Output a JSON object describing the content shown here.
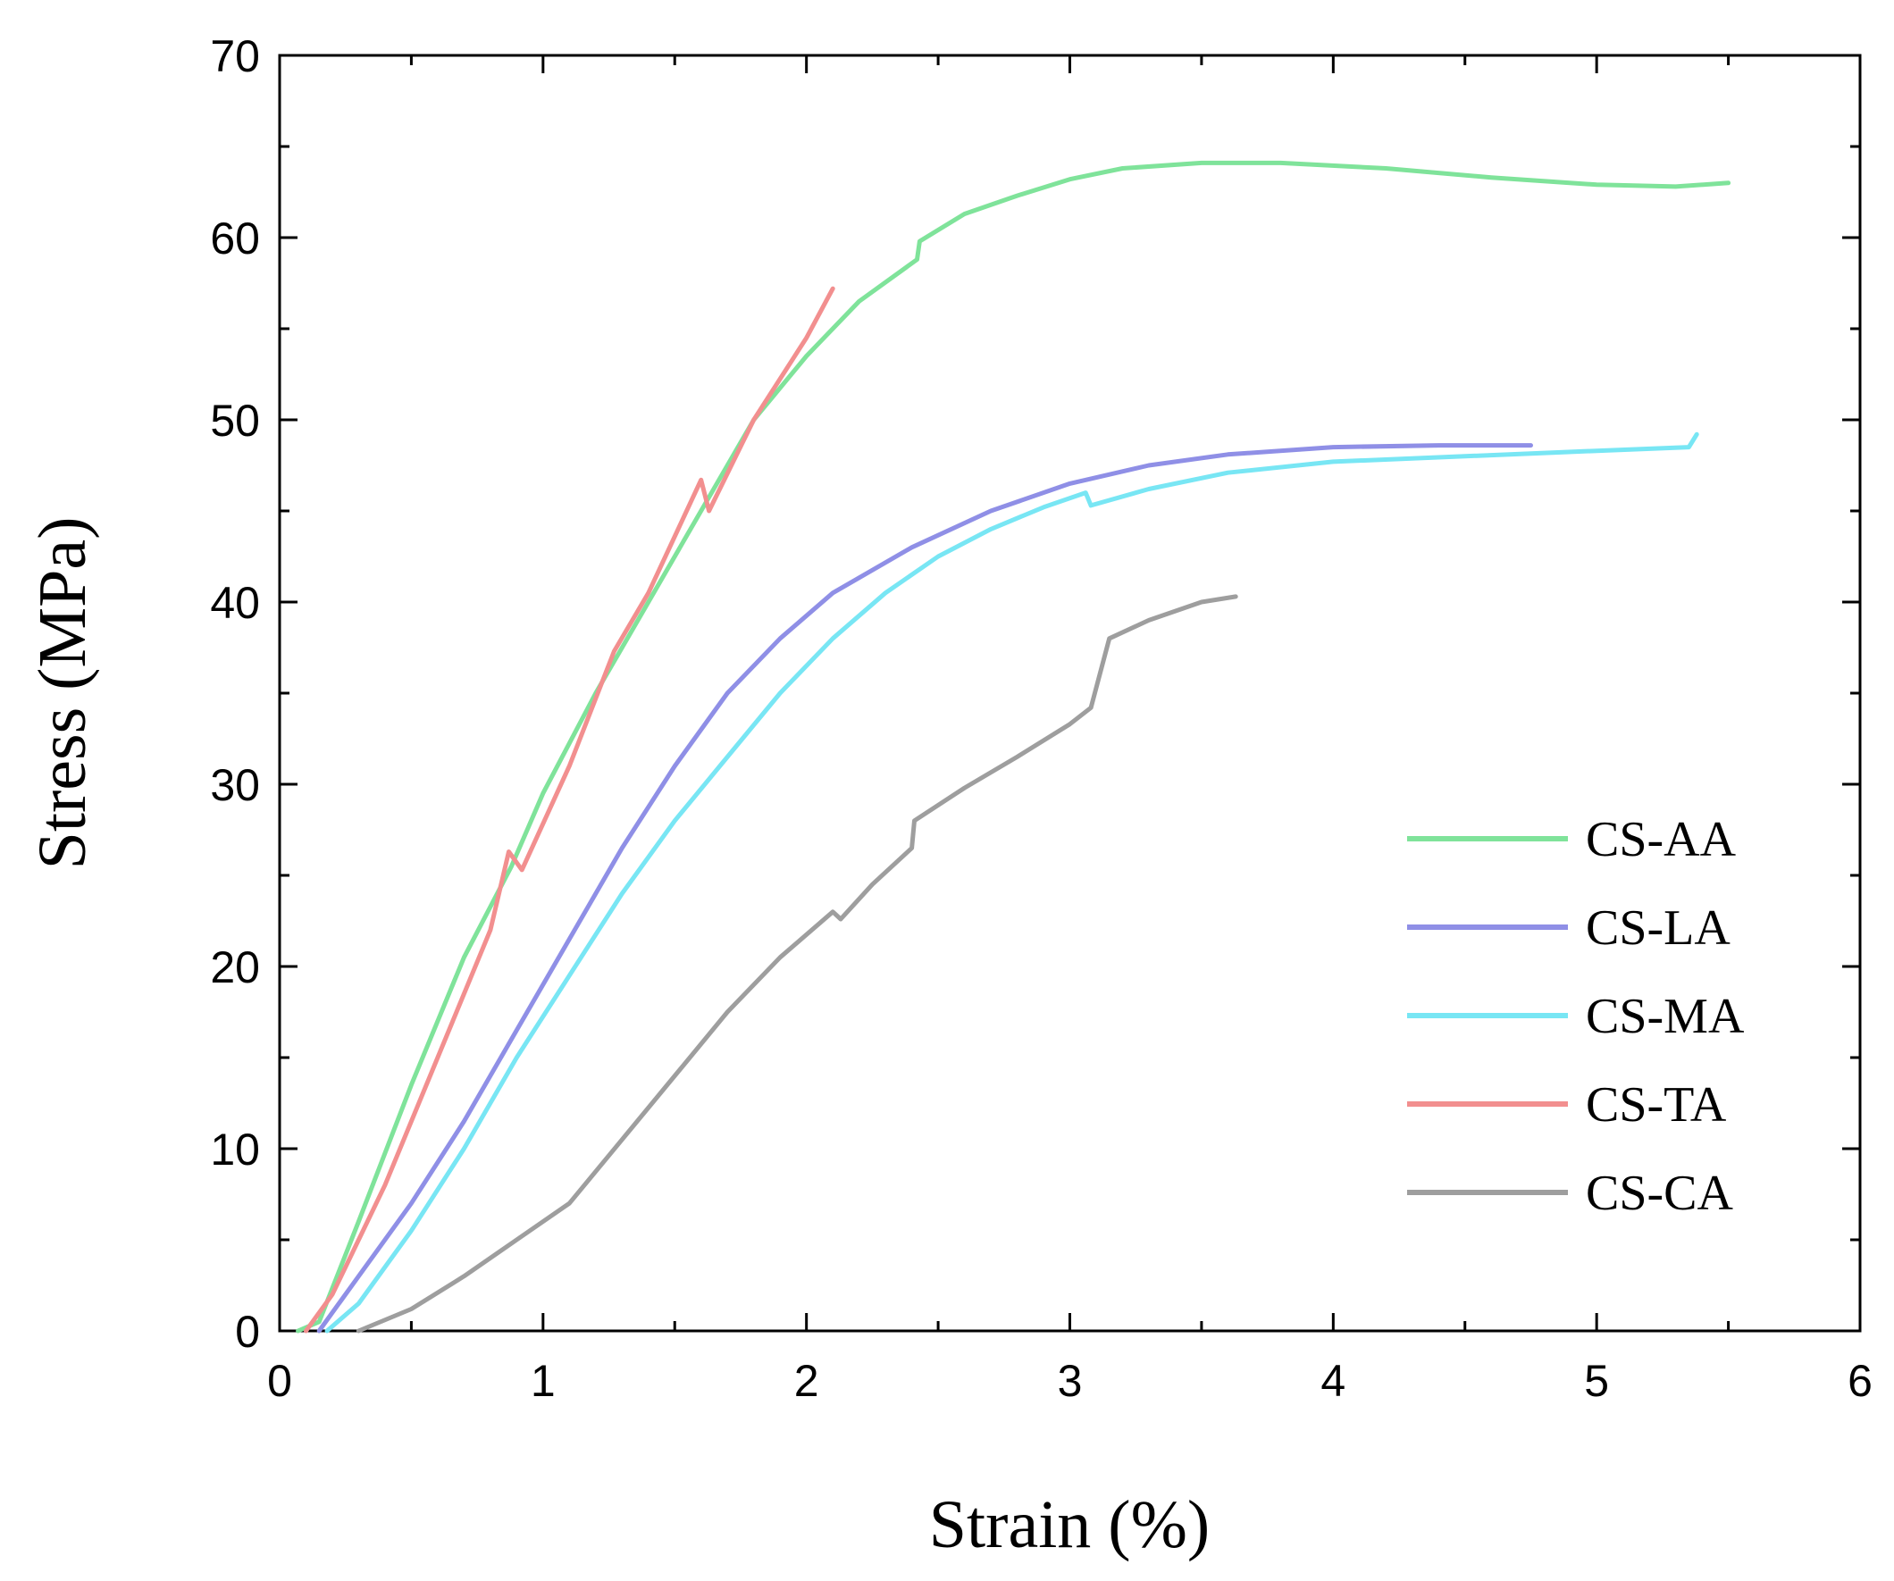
{
  "chart_data": {
    "type": "line",
    "title": "",
    "xlabel": "Strain (%)",
    "ylabel": "Stress (MPa)",
    "xlim": [
      0,
      6
    ],
    "ylim": [
      0,
      70
    ],
    "xticks": [
      0,
      1,
      2,
      3,
      4,
      5,
      6
    ],
    "xtick_labels": [
      "0",
      "1",
      "2",
      "3",
      "4",
      "5",
      "6"
    ],
    "yticks": [
      0,
      10,
      20,
      30,
      40,
      50,
      60,
      70
    ],
    "ytick_labels": [
      "0",
      "10",
      "20",
      "30",
      "40",
      "50",
      "60",
      "70"
    ],
    "grid": false,
    "legend_position": "right",
    "series": [
      {
        "name": "CS-AA",
        "color": "#7fe39a",
        "points": [
          [
            0.07,
            0
          ],
          [
            0.15,
            0.5
          ],
          [
            0.3,
            6
          ],
          [
            0.5,
            13.5
          ],
          [
            0.7,
            20.5
          ],
          [
            0.88,
            25.5
          ],
          [
            1.0,
            29.5
          ],
          [
            1.2,
            35
          ],
          [
            1.4,
            40
          ],
          [
            1.6,
            45
          ],
          [
            1.8,
            50
          ],
          [
            2.0,
            53.5
          ],
          [
            2.2,
            56.5
          ],
          [
            2.42,
            58.8
          ],
          [
            2.43,
            59.8
          ],
          [
            2.6,
            61.3
          ],
          [
            2.8,
            62.3
          ],
          [
            3.0,
            63.2
          ],
          [
            3.2,
            63.8
          ],
          [
            3.5,
            64.1
          ],
          [
            3.8,
            64.1
          ],
          [
            4.2,
            63.8
          ],
          [
            4.6,
            63.3
          ],
          [
            5.0,
            62.9
          ],
          [
            5.3,
            62.8
          ],
          [
            5.5,
            63
          ]
        ]
      },
      {
        "name": "CS-LA",
        "color": "#8f8fe6",
        "points": [
          [
            0.15,
            0
          ],
          [
            0.3,
            3
          ],
          [
            0.5,
            7
          ],
          [
            0.7,
            11.5
          ],
          [
            0.9,
            16.5
          ],
          [
            1.1,
            21.5
          ],
          [
            1.3,
            26.5
          ],
          [
            1.5,
            31
          ],
          [
            1.7,
            35
          ],
          [
            1.9,
            38
          ],
          [
            2.1,
            40.5
          ],
          [
            2.4,
            43
          ],
          [
            2.7,
            45
          ],
          [
            3.0,
            46.5
          ],
          [
            3.3,
            47.5
          ],
          [
            3.6,
            48.1
          ],
          [
            4.0,
            48.5
          ],
          [
            4.4,
            48.6
          ],
          [
            4.75,
            48.6
          ]
        ]
      },
      {
        "name": "CS-MA",
        "color": "#78e6f4",
        "points": [
          [
            0.18,
            0
          ],
          [
            0.3,
            1.5
          ],
          [
            0.5,
            5.5
          ],
          [
            0.7,
            10
          ],
          [
            0.9,
            15
          ],
          [
            1.1,
            19.5
          ],
          [
            1.3,
            24
          ],
          [
            1.5,
            28
          ],
          [
            1.7,
            31.5
          ],
          [
            1.9,
            35
          ],
          [
            2.1,
            38
          ],
          [
            2.3,
            40.5
          ],
          [
            2.5,
            42.5
          ],
          [
            2.7,
            44
          ],
          [
            2.9,
            45.2
          ],
          [
            3.06,
            46
          ],
          [
            3.08,
            45.3
          ],
          [
            3.3,
            46.2
          ],
          [
            3.6,
            47.1
          ],
          [
            4.0,
            47.7
          ],
          [
            4.5,
            48.0
          ],
          [
            5.0,
            48.3
          ],
          [
            5.35,
            48.5
          ],
          [
            5.38,
            49.2
          ]
        ]
      },
      {
        "name": "CS-TA",
        "color": "#f28f8f",
        "points": [
          [
            0.1,
            0
          ],
          [
            0.2,
            2
          ],
          [
            0.4,
            8
          ],
          [
            0.6,
            15
          ],
          [
            0.8,
            22
          ],
          [
            0.87,
            26.3
          ],
          [
            0.92,
            25.3
          ],
          [
            1.1,
            31
          ],
          [
            1.27,
            37.3
          ],
          [
            1.4,
            40.5
          ],
          [
            1.6,
            46.7
          ],
          [
            1.63,
            45
          ],
          [
            1.8,
            50
          ],
          [
            2.0,
            54.5
          ],
          [
            2.1,
            57.2
          ]
        ]
      },
      {
        "name": "CS-CA",
        "color": "#9e9e9e",
        "points": [
          [
            0.3,
            0
          ],
          [
            0.5,
            1.2
          ],
          [
            0.7,
            3
          ],
          [
            0.9,
            5
          ],
          [
            1.1,
            7
          ],
          [
            1.3,
            10.5
          ],
          [
            1.5,
            14
          ],
          [
            1.7,
            17.5
          ],
          [
            1.9,
            20.5
          ],
          [
            2.1,
            23
          ],
          [
            2.13,
            22.6
          ],
          [
            2.25,
            24.5
          ],
          [
            2.4,
            26.5
          ],
          [
            2.41,
            28
          ],
          [
            2.6,
            29.8
          ],
          [
            2.8,
            31.5
          ],
          [
            3.0,
            33.3
          ],
          [
            3.08,
            34.2
          ],
          [
            3.15,
            38
          ],
          [
            3.3,
            39
          ],
          [
            3.5,
            40
          ],
          [
            3.63,
            40.3
          ]
        ]
      }
    ]
  }
}
